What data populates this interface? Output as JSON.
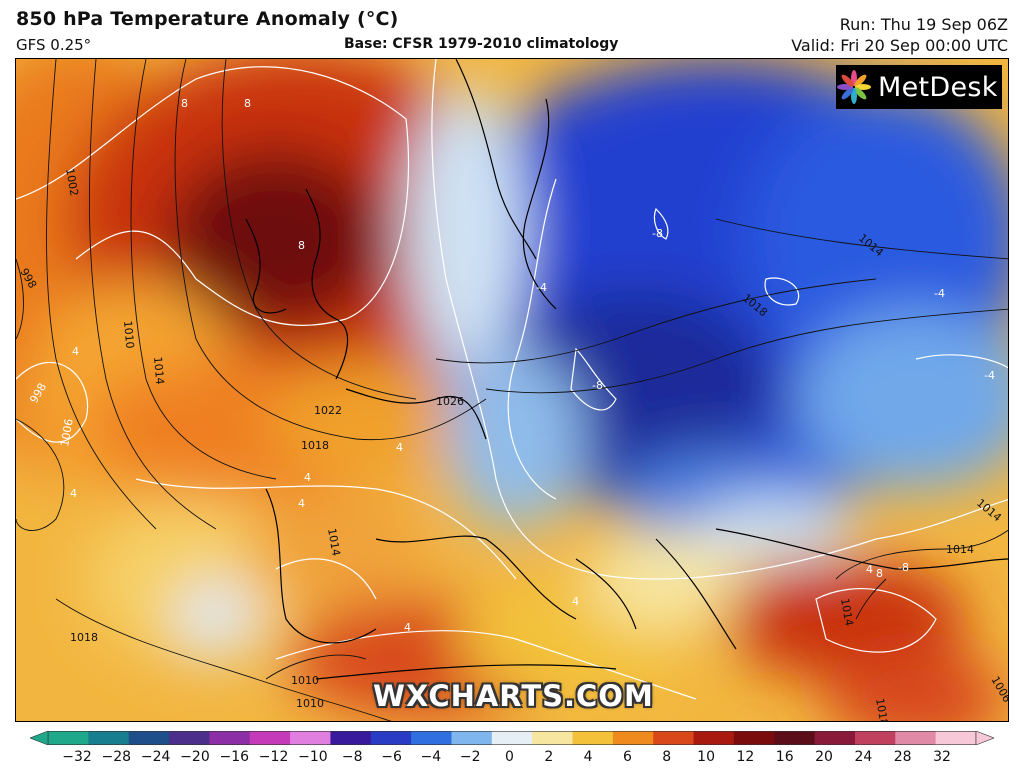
{
  "header": {
    "title": "850 hPa Temperature Anomaly (°C)",
    "model": "GFS 0.25°",
    "base": "Base: CFSR 1979-2010 climatology",
    "run": "Run: Thu 19 Sep 06Z",
    "valid": "Valid: Fri 20 Sep 00:00 UTC"
  },
  "brand": {
    "name": "MetDesk",
    "logo_icon": "metdesk-flower-logo"
  },
  "watermark": "WXCHARTS.COM",
  "map": {
    "isobar_labels": [
      "1002",
      "998",
      "1010",
      "1014",
      "998",
      "1006",
      "1018",
      "1022",
      "1026",
      "1014",
      "1018",
      "1014",
      "1018",
      "1014",
      "1014",
      "1010",
      "1010",
      "1018",
      "1014",
      "1006"
    ],
    "anomaly_labels": [
      "8",
      "8",
      "8",
      "-8",
      "-4",
      "-4",
      "-8",
      "4",
      "4",
      "4",
      "4",
      "4",
      "-4",
      "4",
      "8",
      "-8",
      "4",
      "4"
    ]
  },
  "colorbar": {
    "ticks": [
      "−32",
      "−28",
      "−24",
      "−20",
      "−16",
      "−12",
      "−10",
      "−8",
      "−6",
      "−4",
      "−2",
      "0",
      "2",
      "4",
      "6",
      "8",
      "10",
      "12",
      "16",
      "20",
      "24",
      "28",
      "32"
    ],
    "colors": [
      "#1fa98a",
      "#167e8e",
      "#1f4f8a",
      "#4b2f8a",
      "#8c2ea6",
      "#c43ab8",
      "#e07fe0",
      "#3a1a9c",
      "#2a3bc4",
      "#2f6fe0",
      "#7fb6ee",
      "#e6eef6",
      "#f7e6a0",
      "#f3c23a",
      "#ee8a1e",
      "#d8481a",
      "#a8190f",
      "#7a0c0e",
      "#5c0d1a",
      "#8a1a3a",
      "#c04060",
      "#e08aa8",
      "#f6c8d8"
    ]
  }
}
